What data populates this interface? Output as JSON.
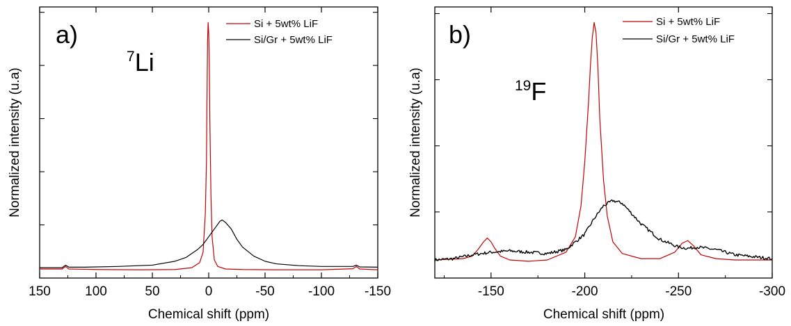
{
  "chart_data": [
    {
      "panel": "a)",
      "type": "line",
      "nucleus": {
        "mass": "7",
        "symbol": "Li"
      },
      "xlabel": "Chemical shift (ppm)",
      "ylabel": "Normalized intensity (u.a)",
      "xlim": [
        150,
        -150
      ],
      "ylim": [
        0,
        1.05
      ],
      "xticks": [
        150,
        100,
        50,
        0,
        -50,
        -100,
        -150
      ],
      "xtick_labels": [
        "150",
        "100",
        "50",
        "0",
        "-50",
        "-100",
        "-150"
      ],
      "legend_position": "top-right",
      "series": [
        {
          "name": "Si + 5wt% LiF",
          "color": "#c00000",
          "x": [
            150,
            130,
            127,
            124,
            100,
            60,
            30,
            15,
            8,
            5,
            3,
            2,
            1.5,
            1,
            0.5,
            0,
            -0.5,
            -1,
            -2,
            -3,
            -5,
            -8,
            -15,
            -30,
            -60,
            -100,
            -128,
            -131,
            -134,
            -150
          ],
          "y": [
            0.035,
            0.035,
            0.045,
            0.035,
            0.033,
            0.032,
            0.033,
            0.04,
            0.06,
            0.1,
            0.25,
            0.45,
            0.7,
            0.92,
            0.99,
            0.95,
            0.85,
            0.62,
            0.32,
            0.16,
            0.07,
            0.045,
            0.035,
            0.033,
            0.032,
            0.032,
            0.036,
            0.045,
            0.035,
            0.032
          ]
        },
        {
          "name": "Si/Gr + 5wt% LiF",
          "color": "#000000",
          "x": [
            150,
            130,
            127,
            124,
            110,
            80,
            50,
            30,
            20,
            10,
            5,
            0,
            -5,
            -10,
            -12,
            -15,
            -20,
            -25,
            -30,
            -40,
            -50,
            -60,
            -80,
            -100,
            -128,
            -131,
            -134,
            -150
          ],
          "y": [
            0.04,
            0.04,
            0.05,
            0.042,
            0.042,
            0.045,
            0.05,
            0.065,
            0.08,
            0.11,
            0.13,
            0.16,
            0.19,
            0.22,
            0.225,
            0.215,
            0.19,
            0.15,
            0.12,
            0.085,
            0.065,
            0.055,
            0.048,
            0.045,
            0.045,
            0.05,
            0.043,
            0.042
          ]
        }
      ]
    },
    {
      "panel": "b)",
      "type": "line",
      "nucleus": {
        "mass": "19",
        "symbol": "F"
      },
      "xlabel": "Chemical shift (ppm)",
      "ylabel": "Normalized intensity (u.a)",
      "xlim": [
        -120,
        -300
      ],
      "ylim": [
        0,
        1.05
      ],
      "xticks": [
        -150,
        -200,
        -250,
        -300
      ],
      "xtick_labels": [
        "-150",
        "-200",
        "-250",
        "-300"
      ],
      "legend_position": "top-right",
      "series": [
        {
          "name": "Si + 5wt% LiF",
          "color": "#c00000",
          "x": [
            -120,
            -135,
            -140,
            -143,
            -146,
            -148,
            -150,
            -152,
            -155,
            -160,
            -170,
            -180,
            -190,
            -195,
            -198,
            -200,
            -202,
            -203,
            -204,
            -205,
            -206,
            -207,
            -208,
            -210,
            -212,
            -215,
            -220,
            -230,
            -240,
            -248,
            -252,
            -255,
            -258,
            -262,
            -270,
            -280,
            -300
          ],
          "y": [
            0.07,
            0.075,
            0.085,
            0.11,
            0.14,
            0.155,
            0.14,
            0.115,
            0.085,
            0.07,
            0.065,
            0.07,
            0.1,
            0.16,
            0.28,
            0.45,
            0.68,
            0.82,
            0.93,
            0.99,
            0.95,
            0.82,
            0.62,
            0.38,
            0.24,
            0.14,
            0.095,
            0.075,
            0.075,
            0.1,
            0.135,
            0.145,
            0.125,
            0.09,
            0.075,
            0.07,
            0.07
          ],
          "noise": 0
        },
        {
          "name": "Si/Gr + 5wt% LiF",
          "color": "#000000",
          "x": [
            -120,
            -130,
            -140,
            -150,
            -160,
            -170,
            -180,
            -190,
            -200,
            -205,
            -210,
            -215,
            -220,
            -225,
            -230,
            -240,
            -250,
            -255,
            -260,
            -270,
            -280,
            -300
          ],
          "y": [
            0.07,
            0.075,
            0.09,
            0.1,
            0.105,
            0.1,
            0.095,
            0.11,
            0.17,
            0.23,
            0.28,
            0.3,
            0.29,
            0.25,
            0.21,
            0.15,
            0.12,
            0.115,
            0.12,
            0.11,
            0.09,
            0.075
          ],
          "noise": 0.012
        }
      ]
    }
  ]
}
